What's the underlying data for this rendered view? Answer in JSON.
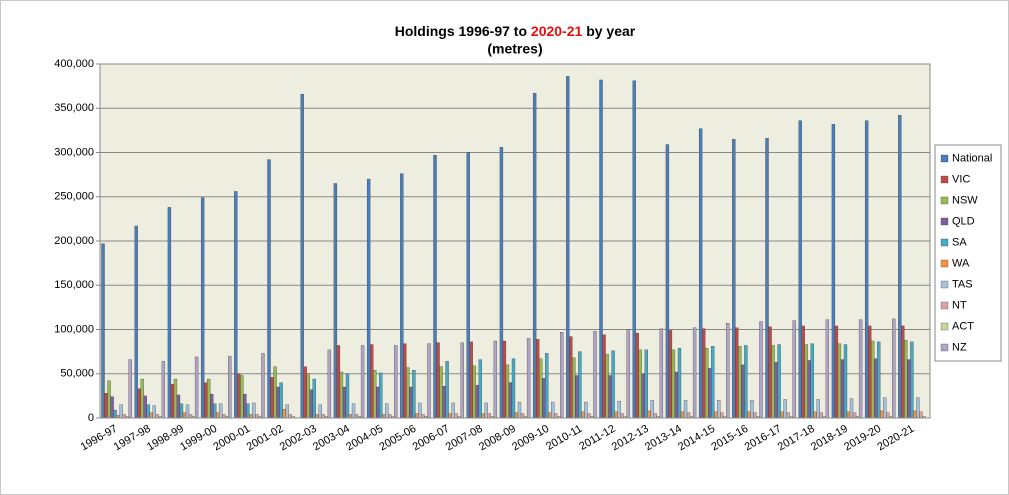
{
  "chart_data": {
    "type": "bar",
    "title_prefix": "Holdings 1996-97 to",
    "title_highlight": "2020-21",
    "title_suffix": "by year",
    "subtitle": "(metres)",
    "title_highlight_color": "#e01010",
    "categories": [
      "1996-97",
      "1997-98",
      "1998-99",
      "1999-00",
      "2000-01",
      "2001-02",
      "2002-03",
      "2003-04",
      "2004-05",
      "2005-06",
      "2006-07",
      "2007-08",
      "2008-09",
      "2009-10",
      "2010-11",
      "2011-12",
      "2012-13",
      "2013-14",
      "2014-15",
      "2015-16",
      "2016-17",
      "2017-18",
      "2018-19",
      "2019-20",
      "2020-21"
    ],
    "series": [
      {
        "name": "National",
        "color": "#4a7ebb",
        "values": [
          197000,
          217000,
          238000,
          249000,
          256000,
          292000,
          366000,
          265000,
          270000,
          276000,
          297000,
          300000,
          306000,
          367000,
          386000,
          382000,
          381000,
          309000,
          327000,
          315000,
          316000,
          336000,
          332000,
          336000,
          342000
        ]
      },
      {
        "name": "VIC",
        "color": "#be4b48",
        "values": [
          28000,
          33000,
          38000,
          40000,
          50000,
          46000,
          58000,
          82000,
          83000,
          84000,
          85000,
          86000,
          87000,
          89000,
          92000,
          94000,
          96000,
          99000,
          101000,
          102000,
          103000,
          104000,
          104000,
          104000,
          104000
        ]
      },
      {
        "name": "NSW",
        "color": "#98b954",
        "values": [
          42000,
          44000,
          44000,
          44000,
          48000,
          58000,
          50000,
          52000,
          54000,
          57000,
          58000,
          59000,
          60000,
          67000,
          68000,
          72000,
          77000,
          77000,
          79000,
          81000,
          82000,
          83000,
          84000,
          87000,
          88000
        ]
      },
      {
        "name": "QLD",
        "color": "#7d60a0",
        "values": [
          24000,
          25000,
          26000,
          27000,
          27000,
          35000,
          32000,
          35000,
          35000,
          35000,
          36000,
          37000,
          40000,
          45000,
          48000,
          48000,
          50000,
          52000,
          56000,
          60000,
          63000,
          65000,
          66000,
          67000,
          66000
        ]
      },
      {
        "name": "SA",
        "color": "#46aac5",
        "values": [
          9000,
          15000,
          16000,
          16000,
          16000,
          40000,
          44000,
          50000,
          51000,
          54000,
          64000,
          66000,
          67000,
          73000,
          75000,
          76000,
          77000,
          79000,
          81000,
          82000,
          83000,
          84000,
          83000,
          86000,
          86000
        ]
      },
      {
        "name": "WA",
        "color": "#f69240",
        "values": [
          3000,
          6000,
          6000,
          6000,
          4000,
          10000,
          4000,
          4000,
          4000,
          5000,
          5000,
          5000,
          6000,
          6000,
          7000,
          7000,
          8000,
          7000,
          7000,
          7000,
          7000,
          7000,
          7000,
          8000,
          8000
        ]
      },
      {
        "name": "TAS",
        "color": "#a7c0de",
        "values": [
          15000,
          14000,
          15000,
          16000,
          17000,
          15000,
          15000,
          16000,
          16000,
          17000,
          17000,
          17000,
          18000,
          18000,
          18000,
          19000,
          20000,
          20000,
          20000,
          20000,
          21000,
          21000,
          22000,
          23000,
          23000
        ]
      },
      {
        "name": "NT",
        "color": "#dea3a1",
        "values": [
          4000,
          4000,
          4000,
          4000,
          4000,
          4000,
          4000,
          4000,
          4000,
          4000,
          5000,
          5000,
          5000,
          5000,
          5000,
          5000,
          5000,
          6000,
          6000,
          6000,
          6000,
          6000,
          6000,
          6000,
          7000
        ]
      },
      {
        "name": "ACT",
        "color": "#c4d79b",
        "values": [
          2000,
          2000,
          2000,
          2000,
          2000,
          2000,
          2000,
          2000,
          2000,
          2000,
          2000,
          2000,
          2000,
          2000,
          2000,
          2000,
          2000,
          2000,
          2000,
          2000,
          2000,
          2000,
          2000,
          2000,
          2000
        ]
      },
      {
        "name": "NZ",
        "color": "#b3a2c7",
        "values": [
          66000,
          64000,
          69000,
          70000,
          73000,
          null,
          77000,
          82000,
          82000,
          84000,
          85000,
          87000,
          90000,
          97000,
          98000,
          100000,
          101000,
          102000,
          107000,
          109000,
          110000,
          111000,
          111000,
          112000,
          null
        ]
      }
    ],
    "ylim": [
      0,
      400000
    ],
    "yticks": [
      0,
      {
        "value": 50000,
        "label": "50,000"
      },
      {
        "value": 100000,
        "label": "100,000"
      },
      {
        "value": 150000,
        "label": "150,000"
      },
      {
        "value": 200000,
        "label": "200,000"
      },
      {
        "value": 250000,
        "label": "250,000"
      },
      {
        "value": 300000,
        "label": "300,000"
      },
      {
        "value": 350000,
        "label": "350,000"
      },
      {
        "value": 400000,
        "label": "400,000"
      }
    ],
    "grid": true,
    "legend": "right",
    "plot_background": "#eeeee0"
  }
}
